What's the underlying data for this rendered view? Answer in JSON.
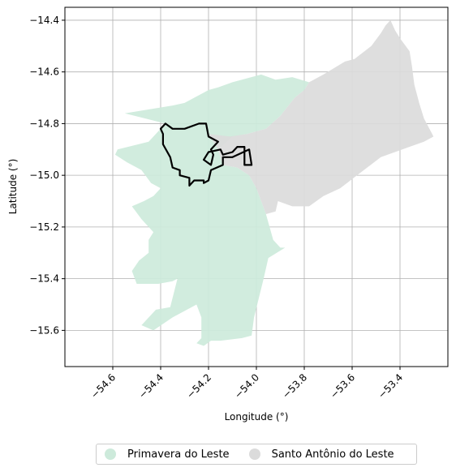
{
  "chart_data": {
    "type": "map",
    "xlabel": "Longitude (°)",
    "ylabel": "Latitude (°)",
    "xlim": [
      -54.8,
      -53.2
    ],
    "ylim": [
      -15.74,
      -14.35
    ],
    "xticks": [
      -54.6,
      -54.4,
      -54.2,
      -54.0,
      -53.8,
      -53.6,
      -53.4
    ],
    "xtick_labels": [
      "−54.6",
      "−54.4",
      "−54.2",
      "−54.0",
      "−53.8",
      "−53.6",
      "−53.4"
    ],
    "yticks": [
      -14.4,
      -14.6,
      -14.8,
      -15.0,
      -15.2,
      -15.4,
      -15.6
    ],
    "ytick_labels": [
      "−14.4",
      "−14.6",
      "−14.8",
      "−15.0",
      "−15.2",
      "−15.4",
      "−15.6"
    ],
    "grid": true,
    "legend_position": "bottom-center",
    "regions": [
      {
        "name": "Primavera do Leste",
        "color": "#cdeadb",
        "polygon": [
          [
            -54.59,
            -14.92
          ],
          [
            -54.58,
            -14.9
          ],
          [
            -54.45,
            -14.87
          ],
          [
            -54.38,
            -14.8
          ],
          [
            -54.55,
            -14.76
          ],
          [
            -54.35,
            -14.73
          ],
          [
            -54.3,
            -14.72
          ],
          [
            -54.2,
            -14.67
          ],
          [
            -54.16,
            -14.66
          ],
          [
            -54.1,
            -14.64
          ],
          [
            -53.98,
            -14.61
          ],
          [
            -53.92,
            -14.63
          ],
          [
            -53.85,
            -14.62
          ],
          [
            -53.78,
            -14.64
          ],
          [
            -53.8,
            -14.67
          ],
          [
            -53.84,
            -14.7
          ],
          [
            -53.9,
            -14.77
          ],
          [
            -53.96,
            -14.82
          ],
          [
            -54.04,
            -14.84
          ],
          [
            -54.1,
            -14.85
          ],
          [
            -54.16,
            -14.9
          ],
          [
            -54.14,
            -14.96
          ],
          [
            -54.08,
            -14.97
          ],
          [
            -54.03,
            -15.0
          ],
          [
            -54.0,
            -15.05
          ],
          [
            -53.98,
            -15.1
          ],
          [
            -53.96,
            -15.15
          ],
          [
            -53.93,
            -15.25
          ],
          [
            -53.9,
            -15.28
          ],
          [
            -53.88,
            -15.28
          ],
          [
            -53.95,
            -15.32
          ],
          [
            -53.97,
            -15.4
          ],
          [
            -54.01,
            -15.55
          ],
          [
            -54.02,
            -15.62
          ],
          [
            -54.06,
            -15.63
          ],
          [
            -54.15,
            -15.64
          ],
          [
            -54.19,
            -15.64
          ],
          [
            -54.22,
            -15.66
          ],
          [
            -54.25,
            -15.65
          ],
          [
            -54.23,
            -15.63
          ],
          [
            -54.23,
            -15.55
          ],
          [
            -54.25,
            -15.5
          ],
          [
            -54.35,
            -15.55
          ],
          [
            -54.43,
            -15.6
          ],
          [
            -54.48,
            -15.58
          ],
          [
            -54.42,
            -15.52
          ],
          [
            -54.36,
            -15.51
          ],
          [
            -54.33,
            -15.4
          ],
          [
            -54.35,
            -15.41
          ],
          [
            -54.41,
            -15.42
          ],
          [
            -54.5,
            -15.42
          ],
          [
            -54.52,
            -15.37
          ],
          [
            -54.49,
            -15.33
          ],
          [
            -54.45,
            -15.3
          ],
          [
            -54.45,
            -15.25
          ],
          [
            -54.43,
            -15.22
          ],
          [
            -54.48,
            -15.17
          ],
          [
            -54.52,
            -15.12
          ],
          [
            -54.47,
            -15.1
          ],
          [
            -54.43,
            -15.08
          ],
          [
            -54.4,
            -15.05
          ],
          [
            -54.44,
            -15.03
          ],
          [
            -54.48,
            -14.98
          ],
          [
            -54.54,
            -14.95
          ]
        ]
      },
      {
        "name": "Santo Antônio do Leste",
        "color": "#dbdbdb",
        "polygon": [
          [
            -54.2,
            -14.84
          ],
          [
            -54.11,
            -14.85
          ],
          [
            -54.04,
            -14.84
          ],
          [
            -53.96,
            -14.82
          ],
          [
            -53.9,
            -14.77
          ],
          [
            -53.84,
            -14.7
          ],
          [
            -53.8,
            -14.67
          ],
          [
            -53.78,
            -14.64
          ],
          [
            -53.72,
            -14.61
          ],
          [
            -53.63,
            -14.56
          ],
          [
            -53.59,
            -14.55
          ],
          [
            -53.52,
            -14.5
          ],
          [
            -53.48,
            -14.45
          ],
          [
            -53.46,
            -14.42
          ],
          [
            -53.44,
            -14.4
          ],
          [
            -53.42,
            -14.44
          ],
          [
            -53.4,
            -14.47
          ],
          [
            -53.36,
            -14.52
          ],
          [
            -53.35,
            -14.58
          ],
          [
            -53.34,
            -14.65
          ],
          [
            -53.32,
            -14.72
          ],
          [
            -53.3,
            -14.78
          ],
          [
            -53.26,
            -14.85
          ],
          [
            -53.3,
            -14.87
          ],
          [
            -53.48,
            -14.93
          ],
          [
            -53.58,
            -15.0
          ],
          [
            -53.65,
            -15.05
          ],
          [
            -53.72,
            -15.08
          ],
          [
            -53.78,
            -15.12
          ],
          [
            -53.85,
            -15.12
          ],
          [
            -53.91,
            -15.1
          ],
          [
            -53.92,
            -15.14
          ],
          [
            -53.96,
            -15.15
          ],
          [
            -53.98,
            -15.1
          ],
          [
            -54.0,
            -15.05
          ],
          [
            -54.03,
            -15.0
          ],
          [
            -54.08,
            -14.97
          ],
          [
            -54.14,
            -14.96
          ],
          [
            -54.16,
            -14.9
          ]
        ]
      }
    ],
    "outline": {
      "stroke": "#000000",
      "polygon": [
        [
          -54.4,
          -14.82
        ],
        [
          -54.38,
          -14.8
        ],
        [
          -54.35,
          -14.82
        ],
        [
          -54.3,
          -14.82
        ],
        [
          -54.24,
          -14.8
        ],
        [
          -54.21,
          -14.8
        ],
        [
          -54.2,
          -14.85
        ],
        [
          -54.16,
          -14.87
        ],
        [
          -54.19,
          -14.9
        ],
        [
          -54.18,
          -14.92
        ],
        [
          -54.19,
          -14.96
        ],
        [
          -54.22,
          -14.94
        ],
        [
          -54.2,
          -14.91
        ],
        [
          -54.15,
          -14.9
        ],
        [
          -54.14,
          -14.92
        ],
        [
          -54.1,
          -14.91
        ],
        [
          -54.08,
          -14.89
        ],
        [
          -54.05,
          -14.89
        ],
        [
          -54.05,
          -14.96
        ],
        [
          -54.02,
          -14.96
        ],
        [
          -54.03,
          -14.9
        ],
        [
          -54.1,
          -14.93
        ],
        [
          -54.14,
          -14.93
        ],
        [
          -54.14,
          -14.96
        ],
        [
          -54.19,
          -14.98
        ],
        [
          -54.2,
          -15.02
        ],
        [
          -54.22,
          -15.03
        ],
        [
          -54.22,
          -15.02
        ],
        [
          -54.26,
          -15.02
        ],
        [
          -54.28,
          -15.04
        ],
        [
          -54.28,
          -15.01
        ],
        [
          -54.32,
          -15.0
        ],
        [
          -54.32,
          -14.98
        ],
        [
          -54.35,
          -14.97
        ],
        [
          -54.36,
          -14.93
        ],
        [
          -54.39,
          -14.88
        ],
        [
          -54.39,
          -14.84
        ]
      ]
    }
  }
}
